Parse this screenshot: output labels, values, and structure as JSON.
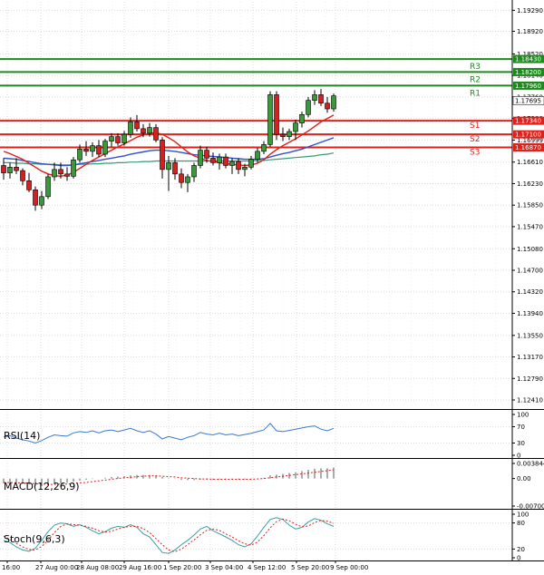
{
  "chart_data": {
    "type": "candlestick",
    "colors": {
      "bull": "#3a9a3a",
      "bear": "#d42020",
      "resistance": "#1e8a1e",
      "support": "#e0201a",
      "sma_fast": "#e0201a",
      "sma_mid": "#3050c8",
      "sma_slow": "#3a9a7a",
      "rsi": "#3a7ad0",
      "macd_signal": "#e0201a",
      "macd_hist": "#909090",
      "stoch_k": "#3aa0a0",
      "stoch_d": "#e0201a",
      "grid": "#dcdcdc",
      "current_price": "#3a9a3a"
    },
    "price_axis": {
      "ylim": [
        1.1225,
        1.1944
      ],
      "ticks": [
        "1.19290",
        "1.18920",
        "1.18520",
        "1.18140",
        "1.17760",
        "1.17380",
        "1.16999",
        "1.16610",
        "1.16230",
        "1.15850",
        "1.15470",
        "1.15080",
        "1.14700",
        "1.14320",
        "1.13940",
        "1.13550",
        "1.13170",
        "1.12790",
        "1.12410"
      ]
    },
    "time_axis": {
      "labels": [
        "16:00",
        "27 Aug 00:00",
        "28 Aug 08:00",
        "29 Aug 16:00",
        "1 Sep 20:00",
        "3 Sep 04:00",
        "4 Sep 12:00",
        "5 Sep 20:00",
        "9 Sep 00:00"
      ]
    },
    "levels": [
      {
        "name": "R3",
        "value": 1.1843,
        "value_text": "1.18430",
        "kind": "resistance"
      },
      {
        "name": "R2",
        "value": 1.182,
        "value_text": "1.18200",
        "kind": "resistance"
      },
      {
        "name": "R1",
        "value": 1.1796,
        "value_text": "1.17960",
        "kind": "resistance"
      },
      {
        "name": "S1",
        "value": 1.1734,
        "value_text": "1.17340",
        "kind": "support"
      },
      {
        "name": "S2",
        "value": 1.171,
        "value_text": "1.17100",
        "kind": "support"
      },
      {
        "name": "S3",
        "value": 1.1687,
        "value_text": "1.16870",
        "kind": "support"
      }
    ],
    "current_price": {
      "value": 1.17695,
      "value_text": "1.17695"
    },
    "candles": [
      [
        1.1655,
        1.1668,
        1.163,
        1.1642
      ],
      [
        1.1642,
        1.166,
        1.1632,
        1.1652
      ],
      [
        1.1652,
        1.1668,
        1.164,
        1.1646
      ],
      [
        1.1646,
        1.165,
        1.162,
        1.1628
      ],
      [
        1.1628,
        1.1642,
        1.1608,
        1.1612
      ],
      [
        1.1612,
        1.1618,
        1.1575,
        1.1585
      ],
      [
        1.1585,
        1.161,
        1.1578,
        1.16
      ],
      [
        1.16,
        1.164,
        1.1596,
        1.1635
      ],
      [
        1.1635,
        1.166,
        1.1628,
        1.1648
      ],
      [
        1.1648,
        1.166,
        1.1632,
        1.164
      ],
      [
        1.164,
        1.1652,
        1.1628,
        1.1636
      ],
      [
        1.1636,
        1.167,
        1.1632,
        1.1665
      ],
      [
        1.1665,
        1.1692,
        1.166,
        1.1684
      ],
      [
        1.1684,
        1.1698,
        1.1672,
        1.168
      ],
      [
        1.168,
        1.1696,
        1.167,
        1.169
      ],
      [
        1.169,
        1.17,
        1.167,
        1.1675
      ],
      [
        1.1675,
        1.1702,
        1.167,
        1.1698
      ],
      [
        1.1698,
        1.1712,
        1.1688,
        1.1706
      ],
      [
        1.1706,
        1.1712,
        1.169,
        1.1695
      ],
      [
        1.1695,
        1.1716,
        1.169,
        1.171
      ],
      [
        1.171,
        1.174,
        1.1704,
        1.1732
      ],
      [
        1.1732,
        1.1744,
        1.1715,
        1.172
      ],
      [
        1.172,
        1.1728,
        1.1705,
        1.1712
      ],
      [
        1.1712,
        1.173,
        1.1706,
        1.1722
      ],
      [
        1.1722,
        1.1728,
        1.1696,
        1.17
      ],
      [
        1.17,
        1.1705,
        1.1632,
        1.1648
      ],
      [
        1.1648,
        1.1672,
        1.161,
        1.166
      ],
      [
        1.166,
        1.1668,
        1.163,
        1.164
      ],
      [
        1.164,
        1.165,
        1.1615,
        1.1625
      ],
      [
        1.1625,
        1.164,
        1.1608,
        1.1635
      ],
      [
        1.1635,
        1.166,
        1.1626,
        1.1655
      ],
      [
        1.1655,
        1.169,
        1.165,
        1.1682
      ],
      [
        1.1682,
        1.1688,
        1.166,
        1.1668
      ],
      [
        1.1668,
        1.1678,
        1.1655,
        1.166
      ],
      [
        1.166,
        1.1676,
        1.1648,
        1.167
      ],
      [
        1.167,
        1.1676,
        1.165,
        1.1655
      ],
      [
        1.1655,
        1.1668,
        1.164,
        1.1662
      ],
      [
        1.1662,
        1.1668,
        1.164,
        1.1648
      ],
      [
        1.1648,
        1.1658,
        1.1636,
        1.1652
      ],
      [
        1.1652,
        1.1672,
        1.1648,
        1.1666
      ],
      [
        1.1666,
        1.1686,
        1.166,
        1.168
      ],
      [
        1.168,
        1.1698,
        1.1675,
        1.1692
      ],
      [
        1.1692,
        1.1786,
        1.1688,
        1.178
      ],
      [
        1.178,
        1.1786,
        1.17,
        1.171
      ],
      [
        1.171,
        1.1722,
        1.1698,
        1.1706
      ],
      [
        1.1706,
        1.172,
        1.17,
        1.1715
      ],
      [
        1.1715,
        1.1736,
        1.17,
        1.173
      ],
      [
        1.173,
        1.175,
        1.1722,
        1.1745
      ],
      [
        1.1745,
        1.1776,
        1.174,
        1.177
      ],
      [
        1.177,
        1.1788,
        1.1762,
        1.178
      ],
      [
        1.178,
        1.179,
        1.176,
        1.1765
      ],
      [
        1.1765,
        1.1776,
        1.1748,
        1.1755
      ],
      [
        1.1755,
        1.1782,
        1.175,
        1.1778
      ]
    ],
    "sma_fast": [
      1.168,
      1.1676,
      1.1671,
      1.1666,
      1.1659,
      1.1652,
      1.1645,
      1.164,
      1.1637,
      1.1636,
      1.1638,
      1.1643,
      1.165,
      1.1657,
      1.1664,
      1.167,
      1.1676,
      1.1682,
      1.1688,
      1.1693,
      1.1699,
      1.1705,
      1.1709,
      1.1712,
      1.1713,
      1.171,
      1.1704,
      1.1697,
      1.1688,
      1.1679,
      1.1672,
      1.1668,
      1.1664,
      1.1662,
      1.166,
      1.1658,
      1.1657,
      1.1656,
      1.1655,
      1.1656,
      1.1659,
      1.1665,
      1.1675,
      1.1683,
      1.169,
      1.1696,
      1.1702,
      1.1709,
      1.1716,
      1.1724,
      1.1732,
      1.1738,
      1.1744
    ],
    "sma_mid": [
      1.1668,
      1.1667,
      1.1666,
      1.1664,
      1.1662,
      1.166,
      1.1658,
      1.1657,
      1.1656,
      1.1655,
      1.1655,
      1.1656,
      1.1658,
      1.166,
      1.1662,
      1.1664,
      1.1666,
      1.1668,
      1.167,
      1.1672,
      1.1675,
      1.1677,
      1.1679,
      1.1681,
      1.1682,
      1.1682,
      1.1681,
      1.168,
      1.1678,
      1.1676,
      1.1674,
      1.1673,
      1.1672,
      1.1671,
      1.167,
      1.1669,
      1.1668,
      1.1667,
      1.1666,
      1.1666,
      1.1666,
      1.1667,
      1.167,
      1.1673,
      1.1676,
      1.1678,
      1.1681,
      1.1684,
      1.1688,
      1.1692,
      1.1696,
      1.17,
      1.1704
    ],
    "sma_slow": [
      1.166,
      1.166,
      1.1659,
      1.1659,
      1.1658,
      1.1658,
      1.1657,
      1.1657,
      1.1657,
      1.1656,
      1.1656,
      1.1656,
      1.1657,
      1.1657,
      1.1658,
      1.1658,
      1.1659,
      1.1659,
      1.166,
      1.166,
      1.1661,
      1.1661,
      1.1662,
      1.1662,
      1.1663,
      1.1663,
      1.1663,
      1.1663,
      1.1663,
      1.1663,
      1.1663,
      1.1663,
      1.1663,
      1.1663,
      1.1663,
      1.1663,
      1.1663,
      1.1663,
      1.1663,
      1.1663,
      1.1664,
      1.1664,
      1.1665,
      1.1666,
      1.1667,
      1.1668,
      1.1669,
      1.167,
      1.1671,
      1.1672,
      1.1674,
      1.1675,
      1.1677
    ],
    "rsi": {
      "label": "RSI(14)",
      "ticks": [
        "100",
        "70",
        "30",
        "0"
      ],
      "ylim": [
        0,
        100
      ],
      "values": [
        45,
        48,
        42,
        38,
        35,
        30,
        36,
        44,
        50,
        48,
        47,
        55,
        58,
        56,
        60,
        55,
        60,
        62,
        58,
        62,
        66,
        60,
        56,
        60,
        52,
        40,
        46,
        42,
        38,
        44,
        48,
        56,
        52,
        50,
        54,
        50,
        52,
        48,
        51,
        54,
        58,
        62,
        78,
        60,
        58,
        61,
        64,
        67,
        70,
        72,
        64,
        60,
        66
      ]
    },
    "macd": {
      "label": "MACD(12,26,9)",
      "ticks": [
        "0.003844",
        "0.00",
        "-0.007007"
      ],
      "ylim": [
        -0.007007,
        0.003844
      ],
      "hist": [
        -0.0012,
        -0.0011,
        -0.0012,
        -0.0013,
        -0.0015,
        -0.0018,
        -0.0019,
        -0.0017,
        -0.0014,
        -0.0012,
        -0.0011,
        -0.0008,
        -0.0005,
        -0.0003,
        -0.0001,
        0.0,
        0.0002,
        0.0004,
        0.0005,
        0.0006,
        0.0008,
        0.0009,
        0.0009,
        0.0009,
        0.0008,
        0.0004,
        0.0001,
        -0.0001,
        -0.0003,
        -0.0004,
        -0.0004,
        -0.0003,
        -0.0003,
        -0.0003,
        -0.0002,
        -0.0002,
        -0.0002,
        -0.0002,
        -0.0002,
        -0.0001,
        0.0,
        0.0002,
        0.0008,
        0.001,
        0.0012,
        0.0014,
        0.0016,
        0.0019,
        0.0022,
        0.0025,
        0.0026,
        0.0026,
        0.0028
      ],
      "signal": [
        -0.001,
        -0.001,
        -0.0011,
        -0.0011,
        -0.0012,
        -0.0013,
        -0.0014,
        -0.0015,
        -0.0015,
        -0.0014,
        -0.0014,
        -0.0013,
        -0.0011,
        -0.001,
        -0.0008,
        -0.0006,
        -0.0004,
        -0.0002,
        0.0,
        0.0002,
        0.0003,
        0.0005,
        0.0006,
        0.0007,
        0.0007,
        0.0006,
        0.0005,
        0.0004,
        0.0002,
        0.0001,
        0.0,
        -0.0001,
        -0.0001,
        -0.0002,
        -0.0002,
        -0.0002,
        -0.0002,
        -0.0002,
        -0.0002,
        -0.0002,
        -0.0001,
        0.0,
        0.0002,
        0.0004,
        0.0006,
        0.0008,
        0.001,
        0.0012,
        0.0014,
        0.0016,
        0.0018,
        0.002,
        0.0022
      ]
    },
    "stoch": {
      "label": "Stoch(9,6,3)",
      "ticks": [
        "100",
        "80",
        "20",
        "0"
      ],
      "ylim": [
        0,
        100
      ],
      "k": [
        40,
        35,
        25,
        18,
        15,
        22,
        40,
        60,
        75,
        80,
        78,
        72,
        76,
        70,
        62,
        55,
        60,
        68,
        72,
        70,
        76,
        70,
        55,
        48,
        30,
        12,
        10,
        18,
        30,
        40,
        52,
        66,
        72,
        62,
        55,
        48,
        40,
        30,
        25,
        32,
        50,
        70,
        88,
        92,
        88,
        75,
        66,
        70,
        82,
        90,
        86,
        78,
        72
      ],
      "d": [
        50,
        42,
        33,
        25,
        19,
        18,
        26,
        40,
        58,
        72,
        78,
        76,
        75,
        72,
        68,
        62,
        59,
        61,
        66,
        70,
        72,
        72,
        67,
        58,
        44,
        30,
        18,
        14,
        20,
        30,
        41,
        53,
        63,
        66,
        63,
        55,
        48,
        39,
        32,
        29,
        36,
        51,
        69,
        83,
        89,
        85,
        77,
        71,
        73,
        81,
        86,
        84,
        79
      ]
    }
  }
}
